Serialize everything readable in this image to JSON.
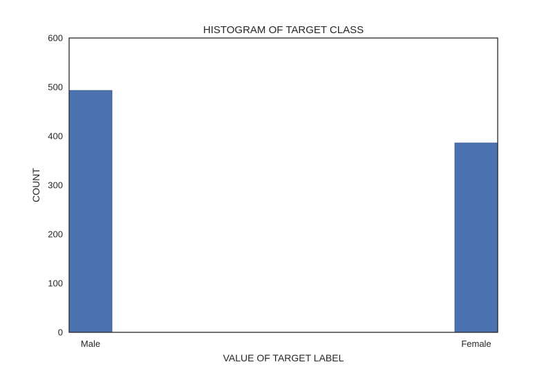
{
  "chart_data": {
    "type": "bar",
    "title": "HISTOGRAM OF TARGET CLASS",
    "xlabel": "VALUE OF TARGET LABEL",
    "ylabel": "COUNT",
    "categories": [
      "Male",
      "Female"
    ],
    "values": [
      493,
      386
    ],
    "ylim": [
      0,
      600
    ],
    "yticks": [
      "0",
      "100",
      "200",
      "300",
      "400",
      "500",
      "600"
    ],
    "grid": false,
    "bar_color": "#4c72b0"
  }
}
